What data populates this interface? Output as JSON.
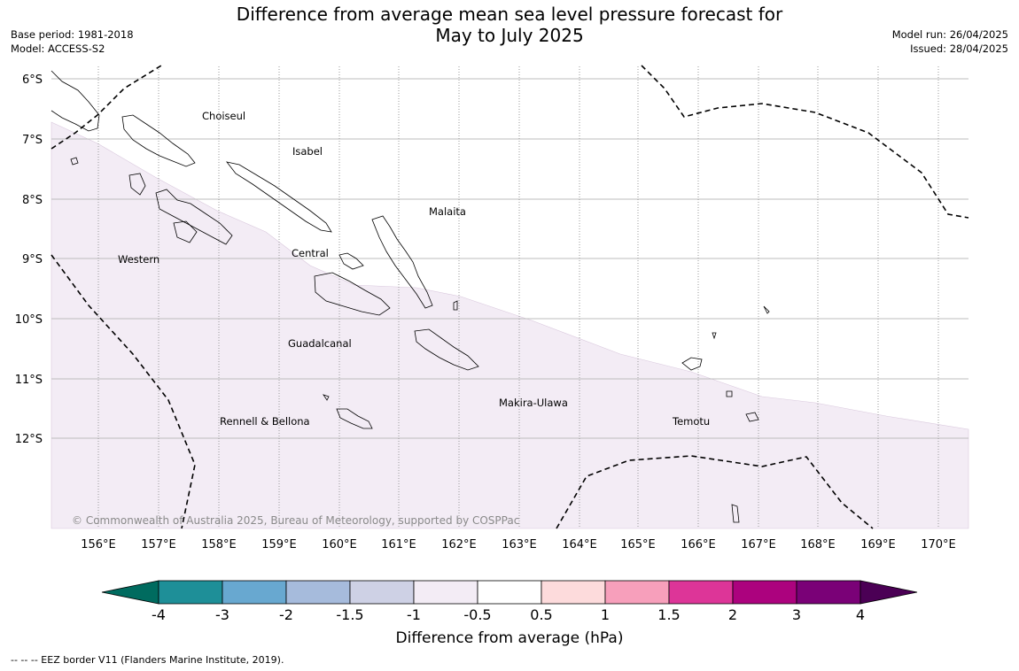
{
  "title": {
    "line1": "Difference from average mean sea level pressure forecast for",
    "line2": "May to July 2025"
  },
  "meta_left": {
    "base_period": "Base period: 1981-2018",
    "model": "Model: ACCESS-S2"
  },
  "meta_right": {
    "model_run": "Model run: 26/04/2025",
    "issued": "Issued: 28/04/2025"
  },
  "map": {
    "lat_labels": [
      "6°S",
      "7°S",
      "8°S",
      "9°S",
      "10°S",
      "11°S",
      "12°S"
    ],
    "lon_labels": [
      "156°E",
      "157°E",
      "158°E",
      "159°E",
      "160°E",
      "161°E",
      "162°E",
      "163°E",
      "164°E",
      "165°E",
      "166°E",
      "167°E",
      "168°E",
      "169°E",
      "170°E"
    ],
    "regions": [
      "Choiseul",
      "Isabel",
      "Malaita",
      "Western",
      "Central",
      "Guadalcanal",
      "Makira-Ulawa",
      "Rennell & Bellona",
      "Temotu"
    ],
    "copyright": "© Commonwealth of Australia 2025, Bureau of Meteorology, supported by COSPPac",
    "shaded_category": "-1 to -0.5",
    "shaded_color": "#f3ecf5"
  },
  "colorbar": {
    "title": "Difference from average (hPa)",
    "ticks": [
      "-4",
      "-3",
      "-2",
      "-1.5",
      "-1",
      "-0.5",
      "0.5",
      "1",
      "1.5",
      "2",
      "3",
      "4"
    ],
    "low_extend_color": "#006b5f",
    "high_extend_color": "#4b0055",
    "colors": [
      "#1e8f98",
      "#68a8d0",
      "#a6bbdc",
      "#ced1e5",
      "#f3ecf5",
      "#ffffff",
      "#fddbdc",
      "#f79fbb",
      "#dd3598",
      "#ac027e",
      "#7a0177"
    ]
  },
  "legend_note": "--  --  -- EEZ border V11 (Flanders Marine Institute, 2019)."
}
